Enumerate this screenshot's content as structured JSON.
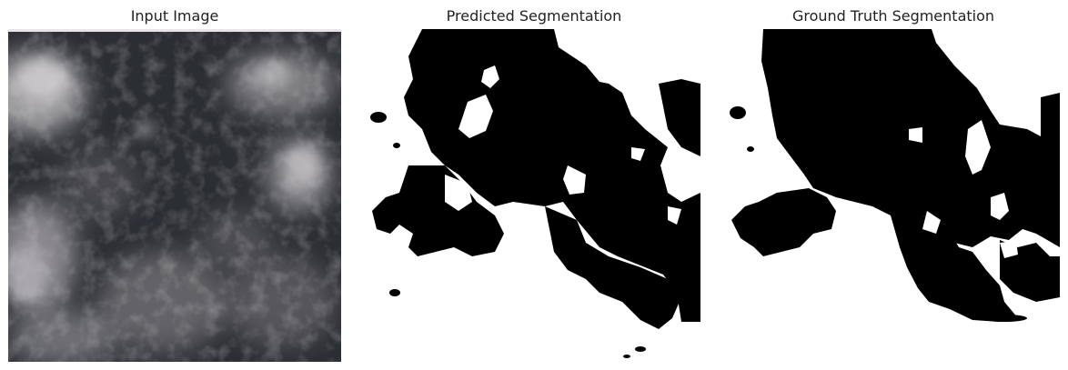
{
  "panels": [
    {
      "title": "Input Image"
    },
    {
      "title": "Predicted Segmentation"
    },
    {
      "title": "Ground Truth Segmentation"
    }
  ],
  "colors": {
    "mask_foreground": "#000000",
    "mask_background": "#ffffff",
    "cloud_light": "#c9c6c9",
    "sky_dark": "#23262a"
  }
}
